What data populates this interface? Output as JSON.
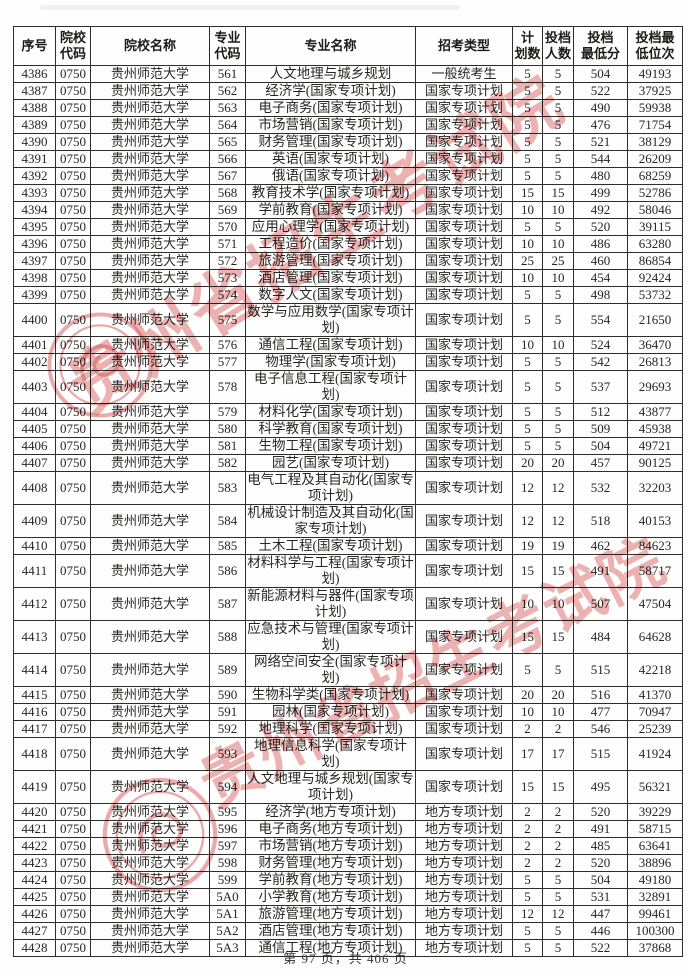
{
  "document": {
    "footer": "第 97 页，共 406 页"
  },
  "watermark": {
    "text": "贵州省招生考试院",
    "color": "#d85a58"
  },
  "table": {
    "headers": [
      "序号",
      "院校\n代码",
      "院校名称",
      "专业\n代码",
      "专业名称",
      "招考类型",
      "计\n划数",
      "投档\n人数",
      "投档\n最低分",
      "投档最\n低位次"
    ],
    "rows": [
      [
        "4386",
        "0750",
        "贵州师范大学",
        "561",
        "人文地理与城乡规划",
        "一般统考生",
        "5",
        "5",
        "504",
        "49193"
      ],
      [
        "4387",
        "0750",
        "贵州师范大学",
        "562",
        "经济学(国家专项计划)",
        "国家专项计划",
        "5",
        "5",
        "522",
        "37925"
      ],
      [
        "4388",
        "0750",
        "贵州师范大学",
        "563",
        "电子商务(国家专项计划)",
        "国家专项计划",
        "5",
        "5",
        "490",
        "59938"
      ],
      [
        "4389",
        "0750",
        "贵州师范大学",
        "564",
        "市场营销(国家专项计划)",
        "国家专项计划",
        "5",
        "5",
        "476",
        "71754"
      ],
      [
        "4390",
        "0750",
        "贵州师范大学",
        "565",
        "财务管理(国家专项计划)",
        "国家专项计划",
        "5",
        "5",
        "521",
        "38129"
      ],
      [
        "4391",
        "0750",
        "贵州师范大学",
        "566",
        "英语(国家专项计划)",
        "国家专项计划",
        "5",
        "5",
        "544",
        "26209"
      ],
      [
        "4392",
        "0750",
        "贵州师范大学",
        "567",
        "俄语(国家专项计划)",
        "国家专项计划",
        "5",
        "5",
        "480",
        "68259"
      ],
      [
        "4393",
        "0750",
        "贵州师范大学",
        "568",
        "教育技术学(国家专项计划)",
        "国家专项计划",
        "15",
        "15",
        "499",
        "52786"
      ],
      [
        "4394",
        "0750",
        "贵州师范大学",
        "569",
        "学前教育(国家专项计划)",
        "国家专项计划",
        "10",
        "10",
        "492",
        "58046"
      ],
      [
        "4395",
        "0750",
        "贵州师范大学",
        "570",
        "应用心理学(国家专项计划)",
        "国家专项计划",
        "5",
        "5",
        "520",
        "39115"
      ],
      [
        "4396",
        "0750",
        "贵州师范大学",
        "571",
        "工程造价(国家专项计划)",
        "国家专项计划",
        "10",
        "10",
        "486",
        "63280"
      ],
      [
        "4397",
        "0750",
        "贵州师范大学",
        "572",
        "旅游管理(国家专项计划)",
        "国家专项计划",
        "25",
        "25",
        "460",
        "86854"
      ],
      [
        "4398",
        "0750",
        "贵州师范大学",
        "573",
        "酒店管理(国家专项计划)",
        "国家专项计划",
        "10",
        "10",
        "454",
        "92424"
      ],
      [
        "4399",
        "0750",
        "贵州师范大学",
        "574",
        "数字人文(国家专项计划)",
        "国家专项计划",
        "5",
        "5",
        "498",
        "53732"
      ],
      [
        "4400",
        "0750",
        "贵州师范大学",
        "575",
        "数学与应用数学(国家专项计划)",
        "国家专项计划",
        "5",
        "5",
        "554",
        "21650"
      ],
      [
        "4401",
        "0750",
        "贵州师范大学",
        "576",
        "通信工程(国家专项计划)",
        "国家专项计划",
        "10",
        "10",
        "524",
        "36470"
      ],
      [
        "4402",
        "0750",
        "贵州师范大学",
        "577",
        "物理学(国家专项计划)",
        "国家专项计划",
        "5",
        "5",
        "542",
        "26813"
      ],
      [
        "4403",
        "0750",
        "贵州师范大学",
        "578",
        "电子信息工程(国家专项计划)",
        "国家专项计划",
        "5",
        "5",
        "537",
        "29693"
      ],
      [
        "4404",
        "0750",
        "贵州师范大学",
        "579",
        "材料化学(国家专项计划)",
        "国家专项计划",
        "5",
        "5",
        "512",
        "43877"
      ],
      [
        "4405",
        "0750",
        "贵州师范大学",
        "580",
        "科学教育(国家专项计划)",
        "国家专项计划",
        "5",
        "5",
        "509",
        "45938"
      ],
      [
        "4406",
        "0750",
        "贵州师范大学",
        "581",
        "生物工程(国家专项计划)",
        "国家专项计划",
        "5",
        "5",
        "504",
        "49721"
      ],
      [
        "4407",
        "0750",
        "贵州师范大学",
        "582",
        "园艺(国家专项计划)",
        "国家专项计划",
        "20",
        "20",
        "457",
        "90125"
      ],
      [
        "4408",
        "0750",
        "贵州师范大学",
        "583",
        "电气工程及其自动化(国家专项计划)",
        "国家专项计划",
        "12",
        "12",
        "532",
        "32203"
      ],
      [
        "4409",
        "0750",
        "贵州师范大学",
        "584",
        "机械设计制造及其自动化(国家专项计划)",
        "国家专项计划",
        "12",
        "12",
        "518",
        "40153"
      ],
      [
        "4410",
        "0750",
        "贵州师范大学",
        "585",
        "土木工程(国家专项计划)",
        "国家专项计划",
        "19",
        "19",
        "462",
        "84623"
      ],
      [
        "4411",
        "0750",
        "贵州师范大学",
        "586",
        "材料科学与工程(国家专项计划)",
        "国家专项计划",
        "15",
        "15",
        "491",
        "58717"
      ],
      [
        "4412",
        "0750",
        "贵州师范大学",
        "587",
        "新能源材料与器件(国家专项计划)",
        "国家专项计划",
        "10",
        "10",
        "507",
        "47504"
      ],
      [
        "4413",
        "0750",
        "贵州师范大学",
        "588",
        "应急技术与管理(国家专项计划)",
        "国家专项计划",
        "15",
        "15",
        "484",
        "64628"
      ],
      [
        "4414",
        "0750",
        "贵州师范大学",
        "589",
        "网络空间安全(国家专项计划)",
        "国家专项计划",
        "5",
        "5",
        "515",
        "42218"
      ],
      [
        "4415",
        "0750",
        "贵州师范大学",
        "590",
        "生物科学类(国家专项计划)",
        "国家专项计划",
        "20",
        "20",
        "516",
        "41370"
      ],
      [
        "4416",
        "0750",
        "贵州师范大学",
        "591",
        "园林(国家专项计划)",
        "国家专项计划",
        "10",
        "10",
        "477",
        "70947"
      ],
      [
        "4417",
        "0750",
        "贵州师范大学",
        "592",
        "地理科学(国家专项计划)",
        "国家专项计划",
        "2",
        "2",
        "546",
        "25239"
      ],
      [
        "4418",
        "0750",
        "贵州师范大学",
        "593",
        "地理信息科学(国家专项计划)",
        "国家专项计划",
        "17",
        "17",
        "515",
        "41924"
      ],
      [
        "4419",
        "0750",
        "贵州师范大学",
        "594",
        "人文地理与城乡规划(国家专项计划)",
        "国家专项计划",
        "15",
        "15",
        "495",
        "56321"
      ],
      [
        "4420",
        "0750",
        "贵州师范大学",
        "595",
        "经济学(地方专项计划)",
        "地方专项计划",
        "2",
        "2",
        "520",
        "39229"
      ],
      [
        "4421",
        "0750",
        "贵州师范大学",
        "596",
        "电子商务(地方专项计划)",
        "地方专项计划",
        "2",
        "2",
        "491",
        "58715"
      ],
      [
        "4422",
        "0750",
        "贵州师范大学",
        "597",
        "市场营销(地方专项计划)",
        "地方专项计划",
        "2",
        "2",
        "485",
        "63641"
      ],
      [
        "4423",
        "0750",
        "贵州师范大学",
        "598",
        "财务管理(地方专项计划)",
        "地方专项计划",
        "2",
        "2",
        "520",
        "38896"
      ],
      [
        "4424",
        "0750",
        "贵州师范大学",
        "599",
        "学前教育(地方专项计划)",
        "地方专项计划",
        "5",
        "5",
        "504",
        "49180"
      ],
      [
        "4425",
        "0750",
        "贵州师范大学",
        "5A0",
        "小学教育(地方专项计划)",
        "地方专项计划",
        "5",
        "5",
        "531",
        "32891"
      ],
      [
        "4426",
        "0750",
        "贵州师范大学",
        "5A1",
        "旅游管理(地方专项计划)",
        "地方专项计划",
        "12",
        "12",
        "447",
        "99461"
      ],
      [
        "4427",
        "0750",
        "贵州师范大学",
        "5A2",
        "酒店管理(地方专项计划)",
        "地方专项计划",
        "5",
        "5",
        "446",
        "100300"
      ],
      [
        "4428",
        "0750",
        "贵州师范大学",
        "5A3",
        "通信工程(地方专项计划)",
        "地方专项计划",
        "5",
        "5",
        "522",
        "37868"
      ]
    ]
  }
}
